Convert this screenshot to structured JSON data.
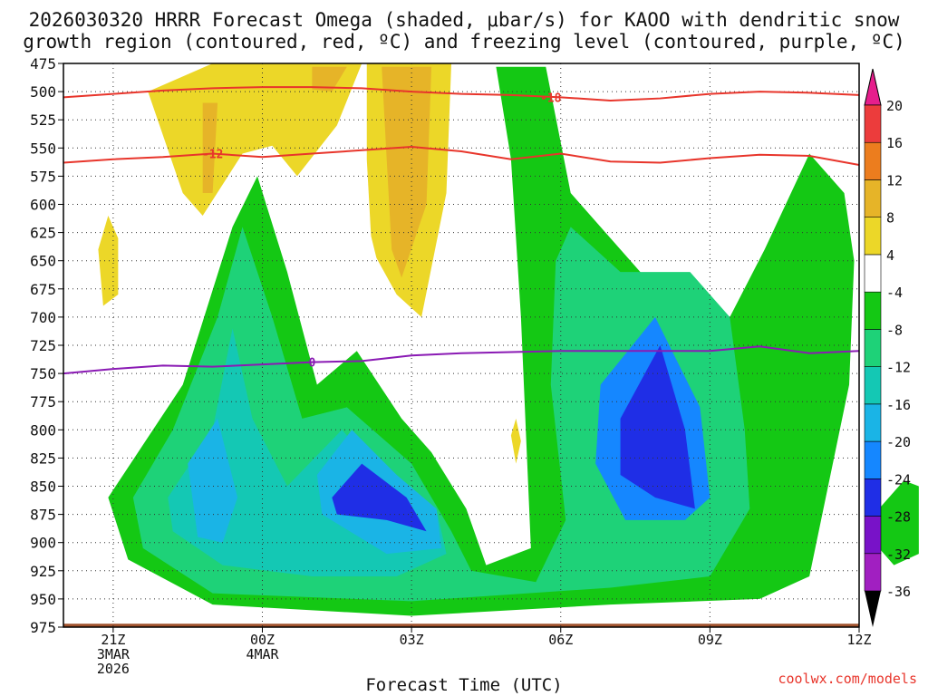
{
  "title_line1": "2026030320 HRRR Forecast Omega (shaded, μbar/s) for KAOO with dendritic snow",
  "title_line2": "growth region (contoured, red, ºC) and freezing level (contoured, purple, ºC)",
  "credit": "coolwx.com/models",
  "chart_data": {
    "type": "heatmap",
    "title": "2026030320 HRRR Forecast Omega (shaded, μbar/s) for KAOO with dendritic snow growth region (contoured, red, ºC) and freezing level (contoured, purple, ºC)",
    "xlabel": "Forecast Time (UTC)",
    "ylabel": "",
    "x_range_hours": [
      -22,
      -6
    ],
    "y_range_hPa": [
      975,
      475
    ],
    "y_ticks": [
      475,
      500,
      525,
      550,
      575,
      600,
      625,
      650,
      675,
      700,
      725,
      750,
      775,
      800,
      825,
      850,
      875,
      900,
      925,
      950,
      975
    ],
    "x_ticks": [
      {
        "h": -21,
        "lines": [
          "21Z",
          "3MAR",
          "2026"
        ]
      },
      {
        "h": -18,
        "lines": [
          "00Z",
          "4MAR"
        ]
      },
      {
        "h": -15,
        "lines": [
          "03Z"
        ]
      },
      {
        "h": -12,
        "lines": [
          "06Z"
        ]
      },
      {
        "h": -9,
        "lines": [
          "09Z"
        ]
      },
      {
        "h": -6,
        "lines": [
          "12Z"
        ]
      }
    ],
    "colorbar": {
      "levels": [
        -36,
        -32,
        -28,
        -24,
        -20,
        -16,
        -12,
        -8,
        -4,
        4,
        8,
        12,
        16,
        20
      ],
      "labels": [
        "20",
        "16",
        "12",
        "8",
        "4",
        "-4",
        "-8",
        "-12",
        "-16",
        "-20",
        "-24",
        "-28",
        "-32",
        "-36"
      ],
      "colors": [
        "#a0a0a0",
        "#a11fc1",
        "#7812c8",
        "#1f2ee6",
        "#1587ff",
        "#1ab4e6",
        "#14c8b4",
        "#1ed278",
        "#14c814",
        "#ffffff",
        "#ecd728",
        "#e6b428",
        "#ec7d1e",
        "#ec3c3c",
        "#e61e8c"
      ]
    },
    "dgz_contours": [
      {
        "label": "-18",
        "pressure": [
          505,
          502,
          499,
          497,
          496,
          496,
          497,
          500,
          502,
          503,
          505,
          508,
          506,
          502,
          500,
          501,
          503
        ],
        "label_h": -12.2
      },
      {
        "label": "-12",
        "pressure": [
          563,
          560,
          558,
          555,
          558,
          555,
          552,
          549,
          553,
          560,
          555,
          562,
          563,
          559,
          556,
          557,
          565
        ],
        "label_h": -19.0
      }
    ],
    "freezing_contours": [
      {
        "label": "0",
        "pressure": [
          750,
          746,
          743,
          744,
          742,
          740,
          739,
          734,
          732,
          731,
          730,
          730,
          730,
          730,
          726,
          732,
          730
        ],
        "label_h": -17.0
      }
    ],
    "omega_areas": [
      {
        "name": "positive-omega-yellow",
        "value": 4,
        "points": [
          [
            -19.0,
            475
          ],
          [
            -16.0,
            475
          ],
          [
            -16.5,
            530
          ],
          [
            -17.3,
            575
          ],
          [
            -17.8,
            548
          ],
          [
            -18.4,
            555
          ],
          [
            -19.2,
            610
          ],
          [
            -19.6,
            590
          ],
          [
            -20.3,
            500
          ]
        ]
      },
      {
        "name": "positive-omega-yellow-2",
        "value": 4,
        "points": [
          [
            -15.9,
            475
          ],
          [
            -14.2,
            475
          ],
          [
            -14.3,
            590
          ],
          [
            -14.8,
            700
          ],
          [
            -15.3,
            680
          ],
          [
            -15.8,
            640
          ],
          [
            -15.9,
            560
          ]
        ]
      },
      {
        "name": "positive-omega-orange",
        "value": 8,
        "points": [
          [
            -15.6,
            478
          ],
          [
            -14.6,
            478
          ],
          [
            -14.7,
            600
          ],
          [
            -15.2,
            665
          ],
          [
            -15.4,
            640
          ],
          [
            -15.5,
            560
          ]
        ]
      },
      {
        "name": "positive-omega-orange-2",
        "value": 8,
        "points": [
          [
            -17.0,
            478
          ],
          [
            -16.3,
            478
          ],
          [
            -16.6,
            500
          ],
          [
            -17.0,
            498
          ]
        ]
      },
      {
        "name": "positive-omega-orange-3",
        "value": 8,
        "points": [
          [
            -19.2,
            510
          ],
          [
            -18.9,
            510
          ],
          [
            -19.0,
            590
          ],
          [
            -19.2,
            590
          ]
        ]
      },
      {
        "name": "positive-omega-yellow-3",
        "value": 4,
        "points": [
          [
            -21.1,
            610
          ],
          [
            -20.9,
            630
          ],
          [
            -20.9,
            680
          ],
          [
            -21.2,
            690
          ],
          [
            -21.3,
            640
          ]
        ]
      },
      {
        "name": "positive-omega-yellow-4",
        "value": 4,
        "points": [
          [
            -12.9,
            790
          ],
          [
            -12.8,
            810
          ],
          [
            -12.9,
            830
          ],
          [
            -13.0,
            805
          ]
        ]
      },
      {
        "name": "negative-omega-green",
        "value": -4,
        "points": [
          [
            -21.9,
            935
          ],
          [
            -21.9,
            880
          ],
          [
            -21.3,
            800
          ],
          [
            -20.7,
            745
          ],
          [
            -19.8,
            700
          ],
          [
            -18.9,
            640
          ],
          [
            -18.0,
            550
          ],
          [
            -17.0,
            620
          ],
          [
            -16.6,
            680
          ],
          [
            -16.0,
            595
          ],
          [
            -15.3,
            720
          ],
          [
            -14.4,
            745
          ],
          [
            -14.0,
            730
          ],
          [
            -13.9,
            780
          ],
          [
            -13.0,
            888
          ],
          [
            -12.6,
            840
          ],
          [
            -13.0,
            720
          ],
          [
            -13.3,
            605
          ],
          [
            -13.8,
            475
          ],
          [
            -11.8,
            475
          ],
          [
            -11.4,
            580
          ],
          [
            -10.6,
            585
          ],
          [
            -10.3,
            620
          ],
          [
            -9.4,
            650
          ],
          [
            -8.8,
            670
          ],
          [
            -8.1,
            650
          ],
          [
            -7.4,
            475
          ],
          [
            -5.6,
            475
          ],
          [
            -5.3,
            660
          ],
          [
            -4.9,
            760
          ],
          [
            -4.5,
            735
          ],
          [
            -4.2,
            790
          ],
          [
            -3.7,
            870
          ],
          [
            -3.6,
            960
          ],
          [
            -4.2,
            960
          ],
          [
            -5.2,
            920
          ],
          [
            -6.1,
            940
          ],
          [
            -6.5,
            955
          ],
          [
            -10.5,
            965
          ],
          [
            -14.4,
            975
          ],
          [
            -18.9,
            965
          ],
          [
            -21.3,
            942
          ]
        ]
      },
      {
        "name": "negative-omega-teal",
        "value": -8,
        "points": [
          [
            -21.1,
            860
          ],
          [
            -20.5,
            820
          ],
          [
            -19.6,
            760
          ],
          [
            -18.6,
            620
          ],
          [
            -18.1,
            575
          ],
          [
            -17.5,
            660
          ],
          [
            -16.9,
            760
          ],
          [
            -16.1,
            730
          ],
          [
            -15.2,
            790
          ],
          [
            -14.6,
            820
          ],
          [
            -13.9,
            870
          ],
          [
            -13.5,
            920
          ],
          [
            -12.6,
            905
          ],
          [
            -12.8,
            700
          ],
          [
            -13.0,
            560
          ],
          [
            -13.3,
            478
          ],
          [
            -12.3,
            478
          ],
          [
            -11.8,
            590
          ],
          [
            -10.8,
            640
          ],
          [
            -9.6,
            700
          ],
          [
            -8.6,
            700
          ],
          [
            -7.9,
            640
          ],
          [
            -7.0,
            555
          ],
          [
            -6.3,
            590
          ],
          [
            -6.1,
            650
          ],
          [
            -6.2,
            760
          ],
          [
            -7.0,
            930
          ],
          [
            -8.0,
            950
          ],
          [
            -11.0,
            955
          ],
          [
            -15.0,
            965
          ],
          [
            -19.0,
            955
          ],
          [
            -20.7,
            915
          ]
        ]
      },
      {
        "name": "negative-omega-cyan",
        "value": -12,
        "points": [
          [
            -20.6,
            860
          ],
          [
            -19.8,
            800
          ],
          [
            -18.9,
            700
          ],
          [
            -18.4,
            620
          ],
          [
            -17.8,
            700
          ],
          [
            -17.2,
            790
          ],
          [
            -16.3,
            780
          ],
          [
            -15.0,
            830
          ],
          [
            -14.2,
            890
          ],
          [
            -13.8,
            925
          ],
          [
            -12.5,
            935
          ],
          [
            -11.9,
            880
          ],
          [
            -12.2,
            760
          ],
          [
            -12.1,
            650
          ],
          [
            -11.8,
            620
          ],
          [
            -10.8,
            660
          ],
          [
            -9.4,
            660
          ],
          [
            -8.6,
            700
          ],
          [
            -8.3,
            800
          ],
          [
            -8.2,
            870
          ],
          [
            -9.0,
            930
          ],
          [
            -11.0,
            940
          ],
          [
            -15.0,
            952
          ],
          [
            -19.0,
            945
          ],
          [
            -20.4,
            905
          ]
        ]
      },
      {
        "name": "negative-omega-lightblue",
        "value": -16,
        "points": [
          [
            -19.9,
            860
          ],
          [
            -19.0,
            800
          ],
          [
            -18.6,
            710
          ],
          [
            -18.2,
            790
          ],
          [
            -17.5,
            850
          ],
          [
            -16.4,
            800
          ],
          [
            -15.4,
            850
          ],
          [
            -14.5,
            870
          ],
          [
            -14.3,
            910
          ],
          [
            -15.3,
            930
          ],
          [
            -17.0,
            930
          ],
          [
            -18.8,
            920
          ],
          [
            -19.8,
            890
          ]
        ]
      },
      {
        "name": "negative-omega-blue",
        "value": -20,
        "points": [
          [
            -19.5,
            830
          ],
          [
            -18.9,
            790
          ],
          [
            -18.5,
            860
          ],
          [
            -18.8,
            900
          ],
          [
            -19.3,
            895
          ]
        ]
      },
      {
        "name": "negative-omega-blue-2",
        "value": -20,
        "points": [
          [
            -16.9,
            840
          ],
          [
            -16.2,
            800
          ],
          [
            -15.3,
            840
          ],
          [
            -14.5,
            870
          ],
          [
            -14.4,
            905
          ],
          [
            -15.5,
            910
          ],
          [
            -16.8,
            875
          ]
        ]
      },
      {
        "name": "negative-omega-indigo",
        "value": -24,
        "points": [
          [
            -11.2,
            760
          ],
          [
            -10.1,
            700
          ],
          [
            -9.2,
            780
          ],
          [
            -9.0,
            860
          ],
          [
            -9.5,
            880
          ],
          [
            -10.7,
            880
          ],
          [
            -11.3,
            830
          ]
        ]
      },
      {
        "name": "negative-omega-violet",
        "value": -28,
        "points": [
          [
            -10.8,
            790
          ],
          [
            -10.0,
            725
          ],
          [
            -9.5,
            800
          ],
          [
            -9.3,
            870
          ],
          [
            -10.1,
            860
          ],
          [
            -10.8,
            840
          ]
        ]
      },
      {
        "name": "negative-omega-purple",
        "value": -28,
        "points": [
          [
            -16.6,
            860
          ],
          [
            -16.0,
            830
          ],
          [
            -15.1,
            860
          ],
          [
            -14.7,
            890
          ],
          [
            -15.5,
            880
          ],
          [
            -16.5,
            875
          ]
        ]
      },
      {
        "name": "negative-omega-green-right",
        "value": -4,
        "points": [
          [
            -5.9,
            865
          ],
          [
            -5.3,
            830
          ],
          [
            -4.7,
            820
          ],
          [
            -4.5,
            880
          ],
          [
            -4.6,
            950
          ],
          [
            -5.5,
            945
          ],
          [
            -5.9,
            905
          ]
        ]
      },
      {
        "name": "negative-omega-teal-right",
        "value": -8,
        "points": [
          [
            -5.6,
            870
          ],
          [
            -5.1,
            845
          ],
          [
            -4.8,
            850
          ],
          [
            -4.8,
            910
          ],
          [
            -5.3,
            920
          ],
          [
            -5.6,
            905
          ]
        ]
      }
    ],
    "terrain_color": "#a0522d"
  }
}
